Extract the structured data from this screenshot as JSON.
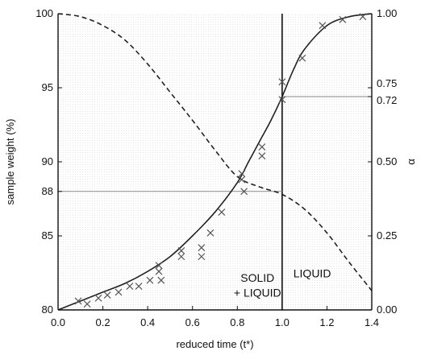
{
  "chart_data": {
    "type": "line",
    "title": "",
    "xlabel": "reduced time (t*)",
    "ylabel": "sample weight (%)",
    "y2label": "α",
    "xlim": [
      0.0,
      1.4
    ],
    "ylim": [
      80,
      100
    ],
    "y2lim": [
      0.0,
      1.0
    ],
    "grid": false,
    "x_ticks": [
      "0.0",
      "0.2",
      "0.4",
      "0.6",
      "0.8",
      "1.0",
      "1.2",
      "1.4"
    ],
    "y_ticks": [
      "80",
      "85",
      "88",
      "90",
      "95",
      "100"
    ],
    "y2_ticks": [
      "0.00",
      "0.25",
      "0.50",
      "0.72",
      "0.75",
      "1.00"
    ],
    "series": [
      {
        "style": "dashed",
        "axis": "left",
        "x": [
          0.0,
          0.1,
          0.2,
          0.3,
          0.4,
          0.5,
          0.6,
          0.7,
          0.8,
          0.9,
          1.0,
          1.1,
          1.2,
          1.3,
          1.4
        ],
        "y": [
          100.0,
          99.8,
          99.2,
          98.2,
          96.6,
          94.7,
          92.8,
          90.8,
          89.0,
          88.3,
          87.8,
          86.8,
          85.2,
          83.2,
          81.3
        ]
      },
      {
        "style": "solid",
        "axis": "right",
        "x": [
          0.0,
          0.1,
          0.2,
          0.3,
          0.4,
          0.5,
          0.6,
          0.7,
          0.8,
          0.85,
          0.9,
          0.95,
          1.0,
          1.05,
          1.1,
          1.2,
          1.3,
          1.4
        ],
        "y": [
          0.0,
          0.03,
          0.06,
          0.09,
          0.13,
          0.18,
          0.25,
          0.33,
          0.43,
          0.5,
          0.57,
          0.64,
          0.72,
          0.81,
          0.88,
          0.96,
          0.99,
          1.0
        ]
      },
      {
        "style": "markers-x",
        "axis": "right",
        "x": [
          0.09,
          0.13,
          0.18,
          0.22,
          0.27,
          0.32,
          0.36,
          0.41,
          0.45,
          0.45,
          0.46,
          0.55,
          0.55,
          0.64,
          0.64,
          0.68,
          0.73,
          0.82,
          0.82,
          0.83,
          0.91,
          0.91,
          1.0,
          1.0,
          1.09,
          1.18,
          1.27,
          1.36
        ],
        "y": [
          0.03,
          0.02,
          0.04,
          0.05,
          0.06,
          0.08,
          0.08,
          0.1,
          0.13,
          0.15,
          0.1,
          0.2,
          0.18,
          0.21,
          0.18,
          0.26,
          0.33,
          0.44,
          0.46,
          0.4,
          0.55,
          0.52,
          0.77,
          0.71,
          0.85,
          0.96,
          0.98,
          0.99
        ]
      }
    ],
    "reference_lines": [
      {
        "orientation": "vertical",
        "x": 1.0
      },
      {
        "orientation": "horizontal",
        "axis": "left",
        "y": 88,
        "x_from": 0.0,
        "x_to": 1.0
      },
      {
        "orientation": "horizontal",
        "axis": "right",
        "y": 0.72,
        "x_from": 1.0,
        "x_to": 1.4
      }
    ],
    "annotations": [
      {
        "text": "SOLID",
        "x": 0.89,
        "y": 81.9
      },
      {
        "text": "+ LIQUID",
        "x": 0.89,
        "y": 80.9
      },
      {
        "text": "LIQUID",
        "x": 1.05,
        "y": 82.2
      }
    ]
  }
}
